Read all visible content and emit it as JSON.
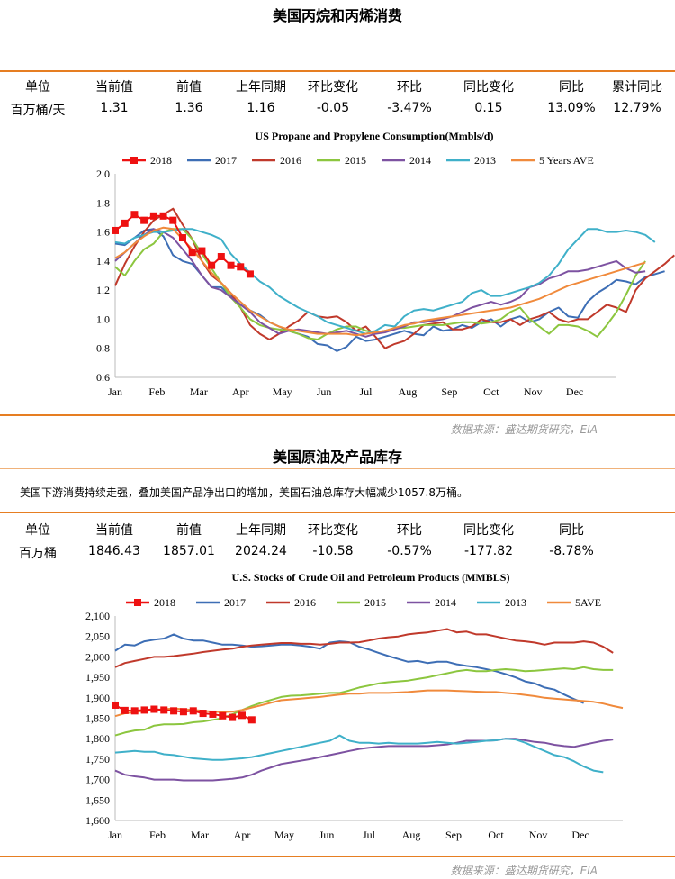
{
  "section1": {
    "title": "美国丙烷和丙烯消费",
    "table": {
      "headers": [
        "单位",
        "当前值",
        "前值",
        "上年同期",
        "环比变化",
        "环比",
        "同比变化",
        "同比",
        "累计同比"
      ],
      "values": [
        "百万桶/天",
        "1.31",
        "1.36",
        "1.16",
        "-0.05",
        "-3.47%",
        "0.15",
        "13.09%",
        "12.79%"
      ]
    },
    "source": "数据来源：盛达期货研究，EIA"
  },
  "section2": {
    "title": "美国原油及产品库存",
    "note": "美国下游消费持续走强，叠加美国产品净出口的增加，美国石油总库存大幅减少1057.8万桶。",
    "table": {
      "headers": [
        "单位",
        "当前值",
        "前值",
        "上年同期",
        "环比变化",
        "环比",
        "同比变化",
        "同比"
      ],
      "values": [
        "百万桶",
        "1846.43",
        "1857.01",
        "2024.24",
        "-10.58",
        "-0.57%",
        "-177.82",
        "-8.78%"
      ]
    },
    "source": "数据来源：盛达期货研究，EIA"
  },
  "chart_data": [
    {
      "type": "line",
      "title": "US Propane and Propylene Consumption(Mmbls/d)",
      "x_labels": [
        "Jan",
        "Feb",
        "Mar",
        "Apr",
        "May",
        "Jun",
        "Jul",
        "Aug",
        "Sep",
        "Oct",
        "Nov",
        "Dec"
      ],
      "ylim": [
        0.6,
        2.0
      ],
      "yticks": [
        "0.6",
        "0.8",
        "1.0",
        "1.2",
        "1.4",
        "1.6",
        "1.8",
        "2.0"
      ],
      "legend_position": "top",
      "series": [
        {
          "name": "2018",
          "color": "#ee1111",
          "marker": "square",
          "values": [
            1.61,
            1.66,
            1.72,
            1.68,
            1.71,
            1.71,
            1.68,
            1.56,
            1.46,
            1.47,
            1.37,
            1.43,
            1.37,
            1.36,
            1.31
          ]
        },
        {
          "name": "2017",
          "color": "#3d6eb5",
          "values": [
            1.52,
            1.51,
            1.56,
            1.61,
            1.62,
            1.57,
            1.44,
            1.4,
            1.38,
            1.3,
            1.22,
            1.22,
            1.16,
            1.1,
            1.06,
            1.03,
            0.98,
            0.95,
            0.92,
            0.9,
            0.88,
            0.83,
            0.82,
            0.78,
            0.81,
            0.88,
            0.85,
            0.86,
            0.88,
            0.9,
            0.92,
            0.9,
            0.89,
            0.95,
            0.92,
            0.93,
            0.96,
            0.94,
            0.98,
            1.0,
            0.95,
            1.0,
            1.02,
            0.98,
            1.0,
            1.05,
            1.08,
            1.02,
            1.01,
            1.12,
            1.18,
            1.22,
            1.27,
            1.26,
            1.24,
            1.29,
            1.31,
            1.33
          ]
        },
        {
          "name": "2016",
          "color": "#c0392b",
          "values": [
            1.23,
            1.38,
            1.5,
            1.6,
            1.68,
            1.72,
            1.76,
            1.65,
            1.55,
            1.4,
            1.3,
            1.25,
            1.18,
            1.08,
            0.96,
            0.9,
            0.86,
            0.9,
            0.95,
            0.99,
            1.05,
            1.02,
            1.01,
            1.02,
            0.98,
            0.92,
            0.95,
            0.88,
            0.8,
            0.83,
            0.85,
            0.9,
            0.96,
            0.97,
            0.98,
            0.93,
            0.93,
            0.95,
            1.0,
            0.98,
            0.98,
            1.0,
            0.96,
            1.0,
            1.02,
            1.05,
            1.0,
            0.98,
            1.0,
            1.0,
            1.05,
            1.1,
            1.08,
            1.05,
            1.2,
            1.28,
            1.33,
            1.38,
            1.44
          ]
        },
        {
          "name": "2015",
          "color": "#8cc63f",
          "values": [
            1.36,
            1.3,
            1.4,
            1.48,
            1.52,
            1.6,
            1.62,
            1.62,
            1.55,
            1.45,
            1.35,
            1.25,
            1.15,
            1.08,
            1.0,
            0.96,
            0.94,
            0.93,
            0.92,
            0.9,
            0.87,
            0.86,
            0.9,
            0.93,
            0.95,
            0.95,
            0.92,
            0.91,
            0.92,
            0.94,
            0.94,
            0.95,
            0.96,
            0.96,
            0.96,
            0.97,
            0.98,
            0.98,
            0.97,
            0.98,
            1.0,
            1.05,
            1.08,
            1.0,
            0.95,
            0.9,
            0.96,
            0.96,
            0.95,
            0.92,
            0.88,
            0.96,
            1.05,
            1.17,
            1.3,
            1.4
          ]
        },
        {
          "name": "2014",
          "color": "#7d52a1",
          "values": [
            1.4,
            1.46,
            1.52,
            1.58,
            1.62,
            1.6,
            1.56,
            1.48,
            1.4,
            1.3,
            1.22,
            1.2,
            1.15,
            1.1,
            1.05,
            0.98,
            0.94,
            0.9,
            0.92,
            0.93,
            0.92,
            0.91,
            0.9,
            0.91,
            0.92,
            0.9,
            0.88,
            0.9,
            0.91,
            0.93,
            0.95,
            0.98,
            0.98,
            0.99,
            1.0,
            1.02,
            1.05,
            1.08,
            1.1,
            1.12,
            1.1,
            1.12,
            1.15,
            1.22,
            1.24,
            1.28,
            1.3,
            1.33,
            1.33,
            1.34,
            1.36,
            1.38,
            1.4,
            1.35,
            1.32,
            1.33
          ]
        },
        {
          "name": "2013",
          "color": "#3fb0c9",
          "values": [
            1.53,
            1.52,
            1.56,
            1.58,
            1.6,
            1.6,
            1.61,
            1.62,
            1.62,
            1.6,
            1.58,
            1.55,
            1.45,
            1.38,
            1.32,
            1.26,
            1.22,
            1.16,
            1.12,
            1.08,
            1.05,
            1.02,
            0.98,
            0.96,
            0.94,
            0.92,
            0.9,
            0.92,
            0.96,
            0.95,
            1.02,
            1.06,
            1.07,
            1.06,
            1.08,
            1.1,
            1.12,
            1.18,
            1.2,
            1.16,
            1.16,
            1.18,
            1.2,
            1.22,
            1.25,
            1.3,
            1.38,
            1.48,
            1.55,
            1.62,
            1.62,
            1.6,
            1.6,
            1.61,
            1.6,
            1.58,
            1.53
          ]
        },
        {
          "name": "5 Years AVE",
          "color": "#f08a3c",
          "values": [
            1.42,
            1.46,
            1.52,
            1.57,
            1.61,
            1.63,
            1.62,
            1.55,
            1.48,
            1.4,
            1.32,
            1.25,
            1.18,
            1.12,
            1.06,
            1.02,
            0.98,
            0.95,
            0.93,
            0.92,
            0.91,
            0.9,
            0.9,
            0.9,
            0.9,
            0.89,
            0.9,
            0.91,
            0.92,
            0.94,
            0.96,
            0.97,
            0.99,
            1.0,
            1.01,
            1.02,
            1.03,
            1.04,
            1.05,
            1.06,
            1.07,
            1.08,
            1.1,
            1.12,
            1.14,
            1.17,
            1.2,
            1.23,
            1.25,
            1.27,
            1.29,
            1.31,
            1.33,
            1.35,
            1.37,
            1.39
          ]
        }
      ]
    },
    {
      "type": "line",
      "title": "U.S.  Stocks of Crude Oil and Petroleum Products  (MMBLS)",
      "x_labels": [
        "Jan",
        "Feb",
        "Mar",
        "Apr",
        "May",
        "Jun",
        "Jul",
        "Aug",
        "Sep",
        "Oct",
        "Nov",
        "Dec"
      ],
      "ylim": [
        1600,
        2100
      ],
      "yticks": [
        "1,600",
        "1,650",
        "1,700",
        "1,750",
        "1,800",
        "1,850",
        "1,900",
        "1,950",
        "2,000",
        "2,050",
        "2,100"
      ],
      "legend_position": "top",
      "series": [
        {
          "name": "2018",
          "color": "#ee1111",
          "marker": "square",
          "values": [
            1882,
            1869,
            1868,
            1870,
            1872,
            1870,
            1868,
            1866,
            1868,
            1862,
            1860,
            1856,
            1852,
            1857,
            1846
          ]
        },
        {
          "name": "2017",
          "color": "#3d6eb5",
          "values": [
            2015,
            2030,
            2028,
            2038,
            2042,
            2045,
            2055,
            2045,
            2040,
            2040,
            2035,
            2030,
            2030,
            2028,
            2025,
            2026,
            2028,
            2030,
            2030,
            2028,
            2025,
            2020,
            2035,
            2038,
            2036,
            2025,
            2018,
            2010,
            2002,
            1995,
            1988,
            1990,
            1985,
            1988,
            1988,
            1982,
            1978,
            1975,
            1970,
            1965,
            1958,
            1950,
            1940,
            1935,
            1925,
            1920,
            1908,
            1897,
            1887
          ]
        },
        {
          "name": "2016",
          "color": "#c0392b",
          "values": [
            1975,
            1985,
            1990,
            1995,
            2000,
            2000,
            2002,
            2005,
            2008,
            2012,
            2015,
            2018,
            2020,
            2025,
            2028,
            2030,
            2032,
            2034,
            2034,
            2032,
            2032,
            2030,
            2032,
            2035,
            2035,
            2036,
            2040,
            2045,
            2048,
            2050,
            2055,
            2058,
            2060,
            2064,
            2068,
            2060,
            2062,
            2055,
            2055,
            2050,
            2045,
            2040,
            2038,
            2035,
            2030,
            2035,
            2035,
            2035,
            2038,
            2035,
            2025,
            2010
          ]
        },
        {
          "name": "2015",
          "color": "#8cc63f",
          "values": [
            1808,
            1815,
            1820,
            1822,
            1832,
            1835,
            1835,
            1836,
            1840,
            1842,
            1846,
            1850,
            1860,
            1870,
            1880,
            1888,
            1895,
            1902,
            1905,
            1906,
            1908,
            1910,
            1912,
            1912,
            1918,
            1925,
            1930,
            1935,
            1938,
            1940,
            1942,
            1946,
            1950,
            1955,
            1960,
            1965,
            1968,
            1965,
            1965,
            1968,
            1970,
            1968,
            1965,
            1966,
            1968,
            1970,
            1972,
            1970,
            1975,
            1970,
            1968,
            1968
          ]
        },
        {
          "name": "2014",
          "color": "#7d52a1",
          "values": [
            1722,
            1712,
            1708,
            1705,
            1700,
            1700,
            1700,
            1698,
            1698,
            1698,
            1698,
            1700,
            1702,
            1705,
            1712,
            1722,
            1730,
            1738,
            1742,
            1746,
            1750,
            1755,
            1760,
            1765,
            1770,
            1775,
            1778,
            1780,
            1782,
            1782,
            1782,
            1782,
            1782,
            1784,
            1786,
            1790,
            1795,
            1795,
            1795,
            1796,
            1800,
            1800,
            1796,
            1792,
            1790,
            1785,
            1782,
            1780,
            1785,
            1790,
            1795,
            1798
          ]
        },
        {
          "name": "2013",
          "color": "#3fb0c9",
          "values": [
            1766,
            1768,
            1770,
            1768,
            1768,
            1762,
            1760,
            1756,
            1752,
            1750,
            1748,
            1748,
            1750,
            1752,
            1755,
            1760,
            1765,
            1770,
            1775,
            1780,
            1785,
            1790,
            1795,
            1808,
            1795,
            1790,
            1790,
            1788,
            1790,
            1788,
            1788,
            1788,
            1790,
            1792,
            1790,
            1788,
            1790,
            1792,
            1795,
            1796,
            1800,
            1798,
            1790,
            1780,
            1770,
            1760,
            1755,
            1745,
            1732,
            1722,
            1718
          ]
        },
        {
          "name": "5AVE",
          "color": "#f08a3c",
          "values": [
            1855,
            1862,
            1865,
            1868,
            1870,
            1872,
            1874,
            1872,
            1870,
            1868,
            1866,
            1865,
            1866,
            1870,
            1876,
            1882,
            1888,
            1894,
            1896,
            1898,
            1900,
            1902,
            1905,
            1908,
            1910,
            1910,
            1912,
            1912,
            1912,
            1913,
            1914,
            1916,
            1918,
            1918,
            1918,
            1917,
            1916,
            1915,
            1914,
            1914,
            1912,
            1910,
            1907,
            1904,
            1900,
            1898,
            1896,
            1894,
            1892,
            1890,
            1886,
            1880,
            1875
          ]
        }
      ]
    }
  ]
}
